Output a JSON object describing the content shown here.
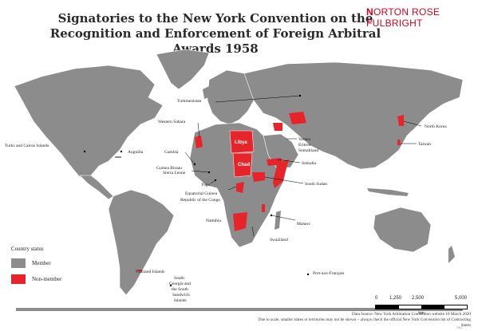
{
  "title": {
    "line1": "Signatories to the New York Convention on the",
    "line2": "Recognition and Enforcement of Foreign Arbitral Awards 1958"
  },
  "brand": {
    "mark": "N",
    "name": "ORTON ROSE FULBRIGHT"
  },
  "colors": {
    "member": "#8c8c8c",
    "non_member": "#e8242b",
    "ocean": "#ffffff",
    "border": "#ffffff"
  },
  "legend": {
    "title": "Country status",
    "items": [
      {
        "label": "Member",
        "color": "#8c8c8c"
      },
      {
        "label": "Non-member",
        "color": "#e8242b"
      }
    ]
  },
  "labels": {
    "turkmenistan": "Turkmenistan",
    "western_sahara": "Western Sahara",
    "north_korea": "North Korea",
    "taiwan": "Taiwan",
    "turks_caicos": "Turks and Caicos Islands",
    "anguilla": "Anguilla",
    "gambia": "Gambia",
    "guinea_bissau": "Guinea Bissau",
    "sierra_leone": "Sierra Leone",
    "togo": "Togo",
    "equatorial_guinea": "Equatorial Guinea",
    "republic_congo": "Republic of the Congo",
    "libya": "Libya",
    "chad": "Chad",
    "yemen": "Yemen",
    "eritrea": "Eritrea",
    "somaliland": "Somaliland",
    "somalia": "Somalia",
    "south_sudan": "South Sudan",
    "namibia": "Namibia",
    "malawi": "Malawi",
    "swaziland": "Swaziland",
    "falkland": "Falkland Islands",
    "south_georgia_1": "South",
    "south_georgia_2": "Georgia and",
    "south_georgia_3": "the South",
    "south_georgia_4": "Sandwich",
    "south_georgia_5": "Islands",
    "port_aux_francais": "Port-aux-Français"
  },
  "scale": {
    "ticks": [
      "0",
      "1,250",
      "2,500",
      "5,000"
    ],
    "unit": "km"
  },
  "source": {
    "line1": "Data Source: New York Arbitration Convention website 10 March 2020",
    "line2": "Due to scale, smaller states or territories may not be shown – always check the official New York Convention list of Contracting",
    "line3": "States"
  },
  "code": "SRC"
}
